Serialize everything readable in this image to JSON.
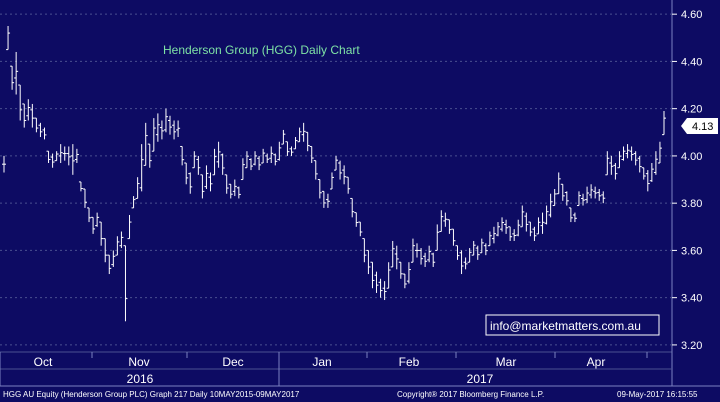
{
  "chart_data": {
    "type": "ohlc",
    "title": "Henderson Group (HGG) Daily Chart",
    "y_ticks": [
      "4.60",
      "4.40",
      "4.20",
      "4.00",
      "3.80",
      "3.60",
      "3.40",
      "3.20"
    ],
    "ylim": [
      3.17,
      4.66
    ],
    "last_price": "4.13",
    "month_labels": [
      "Oct",
      "Nov",
      "Dec",
      "Jan",
      "Feb",
      "Mar",
      "Apr"
    ],
    "year_labels": [
      "2016",
      "2017"
    ],
    "grid": true,
    "colors": {
      "background": "#0d0b63",
      "bars": "#ffffff",
      "grid": "#4a5090",
      "title": "#7fe3a6",
      "price_label_bg": "#ffffff"
    },
    "points": [
      [
        4.0,
        3.93
      ],
      [
        4.55,
        4.45
      ],
      [
        4.38,
        4.28
      ],
      [
        4.44,
        4.26
      ],
      [
        4.3,
        4.15
      ],
      [
        4.22,
        4.12
      ],
      [
        4.24,
        4.15
      ],
      [
        4.22,
        4.12
      ],
      [
        4.16,
        4.1
      ],
      [
        4.14,
        4.08
      ],
      [
        4.12,
        4.07
      ],
      [
        4.02,
        3.97
      ],
      [
        4.01,
        3.95
      ],
      [
        4.02,
        3.98
      ],
      [
        4.05,
        3.97
      ],
      [
        4.04,
        3.98
      ],
      [
        4.04,
        3.96
      ],
      [
        4.05,
        3.92
      ],
      [
        4.03,
        3.97
      ],
      [
        3.89,
        3.85
      ],
      [
        3.86,
        3.78
      ],
      [
        3.78,
        3.72
      ],
      [
        3.74,
        3.67
      ],
      [
        3.76,
        3.7
      ],
      [
        3.72,
        3.62
      ],
      [
        3.65,
        3.55
      ],
      [
        3.58,
        3.5
      ],
      [
        3.6,
        3.53
      ],
      [
        3.66,
        3.58
      ],
      [
        3.68,
        3.61
      ],
      [
        3.62,
        3.3
      ],
      [
        3.75,
        3.65
      ],
      [
        3.83,
        3.78
      ],
      [
        3.91,
        3.82
      ],
      [
        4.05,
        3.85
      ],
      [
        4.14,
        3.96
      ],
      [
        4.05,
        3.95
      ],
      [
        4.16,
        4.02
      ],
      [
        4.18,
        4.06
      ],
      [
        4.15,
        4.07
      ],
      [
        4.2,
        4.1
      ],
      [
        4.17,
        4.09
      ],
      [
        4.15,
        4.07
      ],
      [
        4.15,
        4.08
      ],
      [
        4.04,
        3.96
      ],
      [
        3.97,
        3.88
      ],
      [
        3.93,
        3.84
      ],
      [
        4.02,
        3.95
      ],
      [
        4.0,
        3.92
      ],
      [
        3.92,
        3.82
      ],
      [
        3.96,
        3.86
      ],
      [
        3.93,
        3.85
      ],
      [
        4.03,
        3.92
      ],
      [
        4.06,
        3.95
      ],
      [
        4.01,
        3.92
      ],
      [
        3.92,
        3.84
      ],
      [
        3.88,
        3.82
      ],
      [
        3.9,
        3.83
      ],
      [
        3.87,
        3.82
      ],
      [
        3.99,
        3.9
      ],
      [
        4.02,
        3.95
      ],
      [
        3.99,
        3.94
      ],
      [
        4.02,
        3.96
      ],
      [
        4.0,
        3.94
      ],
      [
        4.03,
        3.97
      ],
      [
        4.01,
        3.97
      ],
      [
        4.04,
        3.97
      ],
      [
        4.01,
        3.96
      ],
      [
        4.06,
        3.98
      ],
      [
        4.11,
        4.05
      ],
      [
        4.06,
        4.0
      ],
      [
        4.04,
        4.0
      ],
      [
        4.08,
        4.03
      ],
      [
        4.12,
        4.06
      ],
      [
        4.14,
        4.06
      ],
      [
        4.1,
        4.02
      ],
      [
        4.04,
        3.97
      ],
      [
        3.98,
        3.9
      ],
      [
        3.9,
        3.82
      ],
      [
        3.85,
        3.78
      ],
      [
        3.84,
        3.78
      ],
      [
        3.93,
        3.86
      ],
      [
        4.0,
        3.94
      ],
      [
        3.98,
        3.9
      ],
      [
        3.96,
        3.88
      ],
      [
        3.91,
        3.84
      ],
      [
        3.82,
        3.74
      ],
      [
        3.76,
        3.7
      ],
      [
        3.72,
        3.66
      ],
      [
        3.65,
        3.55
      ],
      [
        3.6,
        3.5
      ],
      [
        3.55,
        3.44
      ],
      [
        3.51,
        3.42
      ],
      [
        3.48,
        3.4
      ],
      [
        3.47,
        3.39
      ],
      [
        3.55,
        3.44
      ],
      [
        3.64,
        3.53
      ],
      [
        3.62,
        3.52
      ],
      [
        3.55,
        3.48
      ],
      [
        3.5,
        3.44
      ],
      [
        3.55,
        3.46
      ],
      [
        3.65,
        3.55
      ],
      [
        3.63,
        3.57
      ],
      [
        3.61,
        3.54
      ],
      [
        3.59,
        3.53
      ],
      [
        3.62,
        3.55
      ],
      [
        3.59,
        3.53
      ],
      [
        3.71,
        3.6
      ],
      [
        3.77,
        3.68
      ],
      [
        3.76,
        3.7
      ],
      [
        3.73,
        3.67
      ],
      [
        3.69,
        3.62
      ],
      [
        3.62,
        3.56
      ],
      [
        3.6,
        3.5
      ],
      [
        3.57,
        3.52
      ],
      [
        3.61,
        3.55
      ],
      [
        3.64,
        3.58
      ],
      [
        3.62,
        3.56
      ],
      [
        3.65,
        3.59
      ],
      [
        3.63,
        3.58
      ],
      [
        3.68,
        3.62
      ],
      [
        3.7,
        3.63
      ],
      [
        3.72,
        3.66
      ],
      [
        3.74,
        3.68
      ],
      [
        3.73,
        3.67
      ],
      [
        3.7,
        3.64
      ],
      [
        3.69,
        3.64
      ],
      [
        3.73,
        3.66
      ],
      [
        3.79,
        3.7
      ],
      [
        3.76,
        3.68
      ],
      [
        3.72,
        3.66
      ],
      [
        3.7,
        3.64
      ],
      [
        3.74,
        3.67
      ],
      [
        3.76,
        3.67
      ],
      [
        3.79,
        3.71
      ],
      [
        3.84,
        3.74
      ],
      [
        3.86,
        3.79
      ],
      [
        3.93,
        3.84
      ],
      [
        3.88,
        3.81
      ],
      [
        3.85,
        3.79
      ],
      [
        3.78,
        3.72
      ],
      [
        3.76,
        3.72
      ],
      [
        3.85,
        3.79
      ],
      [
        3.84,
        3.79
      ],
      [
        3.87,
        3.8
      ],
      [
        3.88,
        3.82
      ],
      [
        3.87,
        3.82
      ],
      [
        3.86,
        3.81
      ],
      [
        3.85,
        3.8
      ],
      [
        4.02,
        3.92
      ],
      [
        4.0,
        3.92
      ],
      [
        3.97,
        3.9
      ],
      [
        4.02,
        3.95
      ],
      [
        4.04,
        3.98
      ],
      [
        4.05,
        3.99
      ],
      [
        4.04,
        3.98
      ],
      [
        4.02,
        3.96
      ],
      [
        4.0,
        3.93
      ],
      [
        3.95,
        3.9
      ],
      [
        3.94,
        3.85
      ],
      [
        3.97,
        3.89
      ],
      [
        4.02,
        3.92
      ],
      [
        4.06,
        3.97
      ],
      [
        4.19,
        4.09
      ]
    ]
  },
  "branding": {
    "url_box": "info@marketmatters.com.au"
  },
  "footer": {
    "left": "HGG AU Equity (Henderson Group PLC) Graph 217  Daily 10MAY2015-09MAY2017",
    "center": "Copyright® 2017 Bloomberg Finance L.P.",
    "right": "09-May-2017 16:15:55"
  }
}
